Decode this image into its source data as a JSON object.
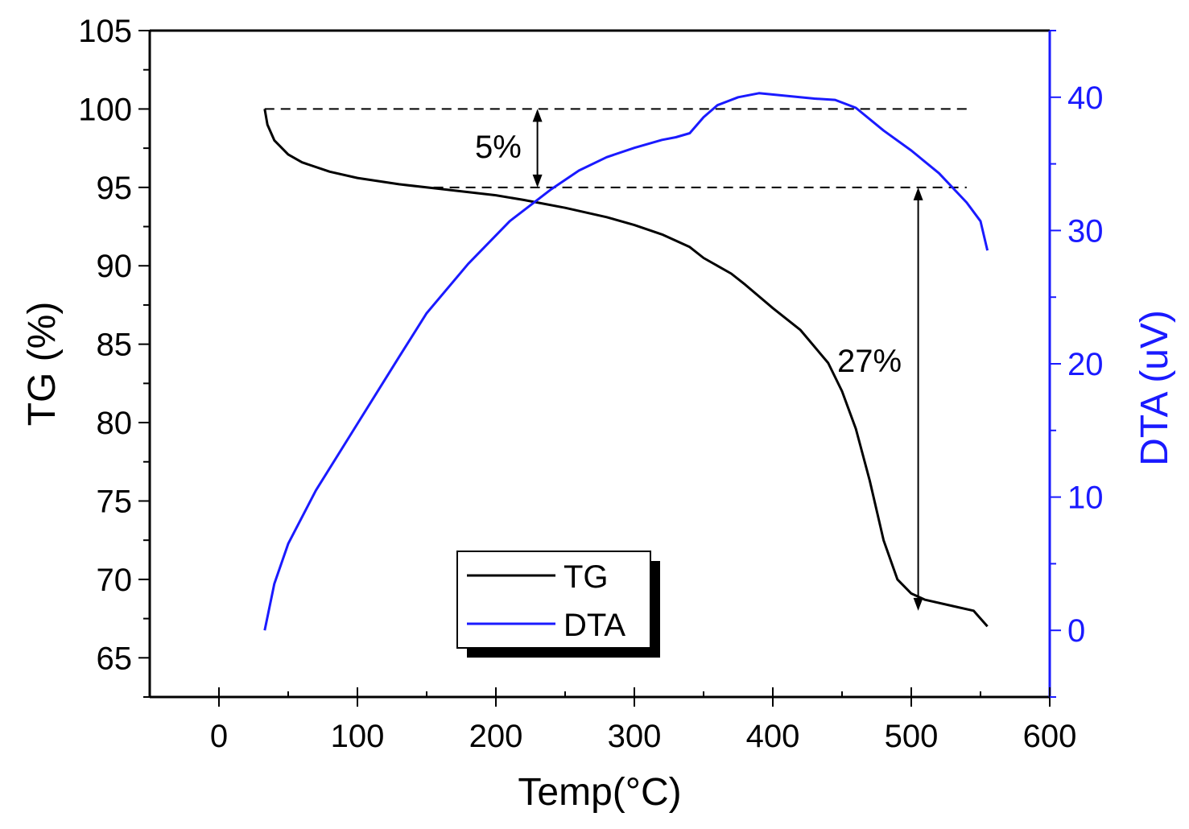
{
  "chart_data": {
    "type": "line",
    "xlabel": "Temp(°C)",
    "ylabel_left": "TG (%)",
    "ylabel_right": "DTA (uV)",
    "xlim": [
      -50,
      600
    ],
    "ylim_left": [
      62.5,
      105
    ],
    "ylim_right": [
      -5,
      45
    ],
    "xticks": [
      0,
      100,
      200,
      300,
      400,
      500,
      600
    ],
    "yticks_left": [
      65,
      70,
      75,
      80,
      85,
      90,
      95,
      100,
      105
    ],
    "yticks_right": [
      0,
      10,
      20,
      30,
      40
    ],
    "grid": false,
    "legend_position": "bottom-center",
    "colors": {
      "TG": "#000000",
      "DTA": "#1a1aff"
    },
    "series": [
      {
        "name": "TG",
        "axis": "left",
        "points": [
          [
            33,
            100
          ],
          [
            35,
            99
          ],
          [
            40,
            98
          ],
          [
            50,
            97.1
          ],
          [
            60,
            96.6
          ],
          [
            80,
            96
          ],
          [
            100,
            95.6
          ],
          [
            130,
            95.2
          ],
          [
            160,
            94.9
          ],
          [
            200,
            94.5
          ],
          [
            220,
            94.2
          ],
          [
            250,
            93.7
          ],
          [
            280,
            93.1
          ],
          [
            300,
            92.6
          ],
          [
            320,
            92
          ],
          [
            340,
            91.2
          ],
          [
            350,
            90.5
          ],
          [
            370,
            89.5
          ],
          [
            380,
            88.8
          ],
          [
            400,
            87.3
          ],
          [
            420,
            85.9
          ],
          [
            440,
            83.8
          ],
          [
            450,
            82
          ],
          [
            460,
            79.6
          ],
          [
            470,
            76.3
          ],
          [
            480,
            72.5
          ],
          [
            490,
            70
          ],
          [
            500,
            69.1
          ],
          [
            510,
            68.7
          ],
          [
            530,
            68.3
          ],
          [
            545,
            68
          ],
          [
            555,
            67
          ]
        ]
      },
      {
        "name": "DTA",
        "axis": "right",
        "points": [
          [
            33,
            0
          ],
          [
            40,
            3.5
          ],
          [
            50,
            6.5
          ],
          [
            70,
            10.5
          ],
          [
            100,
            15.5
          ],
          [
            130,
            20.5
          ],
          [
            150,
            23.8
          ],
          [
            180,
            27.5
          ],
          [
            210,
            30.7
          ],
          [
            240,
            33.1
          ],
          [
            260,
            34.5
          ],
          [
            280,
            35.5
          ],
          [
            300,
            36.2
          ],
          [
            320,
            36.8
          ],
          [
            330,
            37
          ],
          [
            340,
            37.3
          ],
          [
            350,
            38.5
          ],
          [
            360,
            39.4
          ],
          [
            375,
            40
          ],
          [
            390,
            40.3
          ],
          [
            410,
            40.1
          ],
          [
            430,
            39.9
          ],
          [
            445,
            39.8
          ],
          [
            460,
            39.2
          ],
          [
            480,
            37.5
          ],
          [
            500,
            36
          ],
          [
            520,
            34.3
          ],
          [
            540,
            32.1
          ],
          [
            550,
            30.7
          ],
          [
            555,
            28.5
          ]
        ]
      }
    ],
    "annotations": [
      {
        "text": "5%",
        "from": 100,
        "to": 95
      },
      {
        "text": "27%",
        "from": 95,
        "to": 68
      }
    ],
    "reference_lines": [
      {
        "y": 100
      },
      {
        "y": 95
      }
    ]
  }
}
